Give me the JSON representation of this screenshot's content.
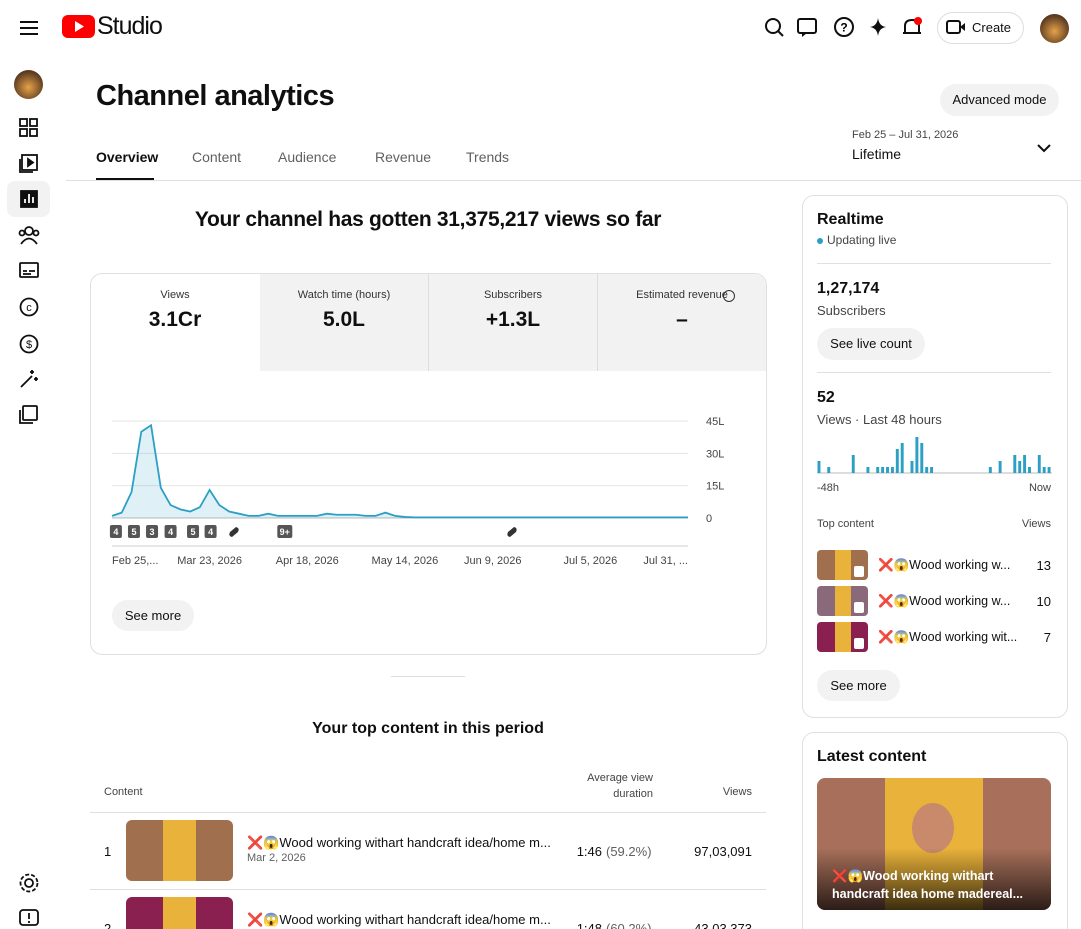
{
  "header": {
    "logo": "Studio",
    "create": "Create"
  },
  "page": {
    "title": "Channel analytics",
    "advanced": "Advanced mode",
    "tabs": [
      "Overview",
      "Content",
      "Audience",
      "Revenue",
      "Trends"
    ],
    "date_range": "Feb 25 – Jul 31, 2026",
    "period": "Lifetime"
  },
  "summary": "Your channel has gotten 31,375,217 views so far",
  "metrics": [
    {
      "label": "Views",
      "value": "3.1Cr"
    },
    {
      "label": "Watch time (hours)",
      "value": "5.0L"
    },
    {
      "label": "Subscribers",
      "value": "+1.3L"
    },
    {
      "label": "Estimated revenue",
      "value": "–"
    }
  ],
  "chart_data": {
    "type": "line",
    "color": "#2ba0c4",
    "values": [
      100000,
      250000,
      1200000,
      4000000,
      4300000,
      1400000,
      600000,
      400000,
      300000,
      500000,
      1300000,
      600000,
      300000,
      200000,
      100000,
      100000,
      200000,
      100000,
      100000,
      100000,
      100000,
      100000,
      200000,
      150000,
      150000,
      150000,
      100000,
      100000,
      250000,
      100000,
      50000,
      30000,
      30000,
      30000,
      30000,
      30000,
      30000,
      30000,
      30000,
      30000,
      30000,
      30000,
      30000,
      30000,
      30000,
      30000,
      30000,
      30000,
      30000,
      30000,
      30000,
      30000,
      30000,
      30000,
      30000,
      30000,
      30000,
      30000,
      30000,
      30000
    ],
    "xlim": [
      0,
      59
    ],
    "ylim": [
      0,
      4500000
    ],
    "yticks": [
      0,
      {
        "value": 1500000,
        "label": "15L"
      },
      {
        "value": 3000000,
        "label": "30L"
      },
      {
        "value": 4500000,
        "label": "45L"
      }
    ],
    "xticks": [
      {
        "value": 0,
        "label": "Feb 25,..."
      },
      {
        "value": 10,
        "label": "Mar 23, 2026"
      },
      {
        "value": 20,
        "label": "Apr 18, 2026"
      },
      {
        "value": 30,
        "label": "May 14, 2026"
      },
      {
        "value": 39,
        "label": "Jun 9, 2026"
      },
      {
        "value": 49,
        "label": "Jul 5, 2026"
      },
      {
        "value": 59,
        "label": "Jul 31, ..."
      }
    ],
    "badges": [
      {
        "x": 0.4,
        "label": "4"
      },
      {
        "x": 2.25,
        "label": "5"
      },
      {
        "x": 4.1,
        "label": "3"
      },
      {
        "x": 6,
        "label": "4"
      },
      {
        "x": 8.3,
        "label": "5"
      },
      {
        "x": 10.1,
        "label": "4"
      },
      {
        "x": 17.7,
        "label": "9+"
      }
    ],
    "grid": true
  },
  "see_more": "See more",
  "top_content": {
    "title": "Your top content in this period",
    "headers": [
      "Content",
      "Average view duration",
      "Views"
    ],
    "rows": [
      {
        "rank": "1",
        "title": "❌😱Wood working withart handcraft idea/home m...",
        "date": "Mar 2, 2026",
        "duration": "1:46",
        "percent": "(59.2%)",
        "views": "97,03,091"
      },
      {
        "rank": "2",
        "title": "❌😱Wood working withart handcraft idea/home m...",
        "date": "",
        "duration": "1:48",
        "percent": "(60.2%)",
        "views": "43,03,373"
      }
    ]
  },
  "realtime": {
    "title": "Realtime",
    "status": "Updating live",
    "subscribers": "1,27,174",
    "subscribers_label": "Subscribers",
    "live_button": "See live count",
    "views": "52",
    "views_label": "Views · Last 48 hours",
    "start_label": "-48h",
    "end_label": "Now",
    "hourly_views": {
      "type": "bar",
      "color": "#2ba0c4",
      "values": [
        2,
        0,
        1,
        0,
        0,
        0,
        0,
        3,
        0,
        0,
        1,
        0,
        1,
        1,
        1,
        1,
        4,
        5,
        0,
        2,
        6,
        5,
        1,
        1,
        0,
        0,
        0,
        0,
        0,
        0,
        0,
        0,
        0,
        0,
        0,
        1,
        0,
        2,
        0,
        0,
        3,
        2,
        3,
        1,
        0,
        3,
        1,
        1
      ]
    },
    "top_header": "Top content",
    "views_header": "Views",
    "top": [
      {
        "title": "❌😱Wood working w...",
        "views": "13"
      },
      {
        "title": "❌😱Wood working w...",
        "views": "10"
      },
      {
        "title": "❌😱Wood working wit...",
        "views": "7"
      }
    ],
    "see_more": "See more"
  },
  "latest": {
    "title": "Latest content",
    "video": "❌😱Wood working withart handcraft idea home madereal..."
  }
}
